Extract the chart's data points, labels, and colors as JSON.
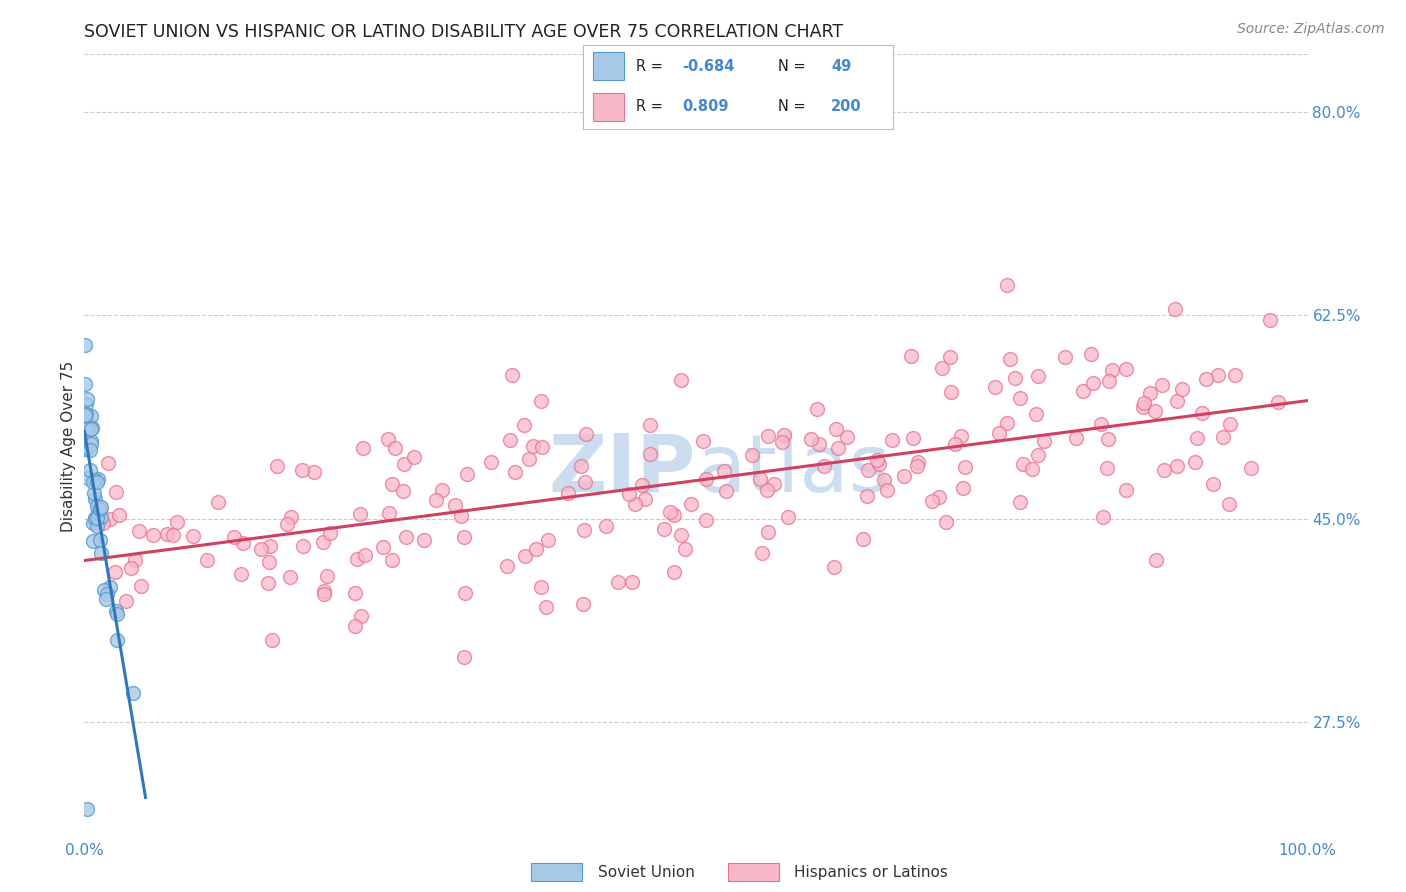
{
  "title": "SOVIET UNION VS HISPANIC OR LATINO DISABILITY AGE OVER 75 CORRELATION CHART",
  "source": "Source: ZipAtlas.com",
  "ylabel": "Disability Age Over 75",
  "watermark": "ZIPatlas",
  "legend_soviet_R": "-0.684",
  "legend_soviet_N": "49",
  "legend_latino_R": "0.809",
  "legend_latino_N": "200",
  "ytick_labels": [
    "27.5%",
    "45.0%",
    "62.5%",
    "80.0%"
  ],
  "ytick_values": [
    0.275,
    0.45,
    0.625,
    0.8
  ],
  "xlim": [
    0.0,
    1.0
  ],
  "ylim": [
    0.175,
    0.85
  ],
  "soviet_fill_color": "#a8c8e8",
  "soviet_edge_color": "#5599cc",
  "soviet_line_color": "#3377bb",
  "latino_fill_color": "#f8b8c8",
  "latino_edge_color": "#e87090",
  "latino_line_color": "#d04060",
  "background_color": "#ffffff",
  "grid_color": "#cccccc",
  "title_color": "#222222",
  "ylabel_color": "#333333",
  "tick_label_color": "#4488cc",
  "source_color": "#888888",
  "watermark_color": "#ccddf0",
  "legend_box_color": "#aabbcc",
  "legend_pink_color": "#f0a8b8"
}
